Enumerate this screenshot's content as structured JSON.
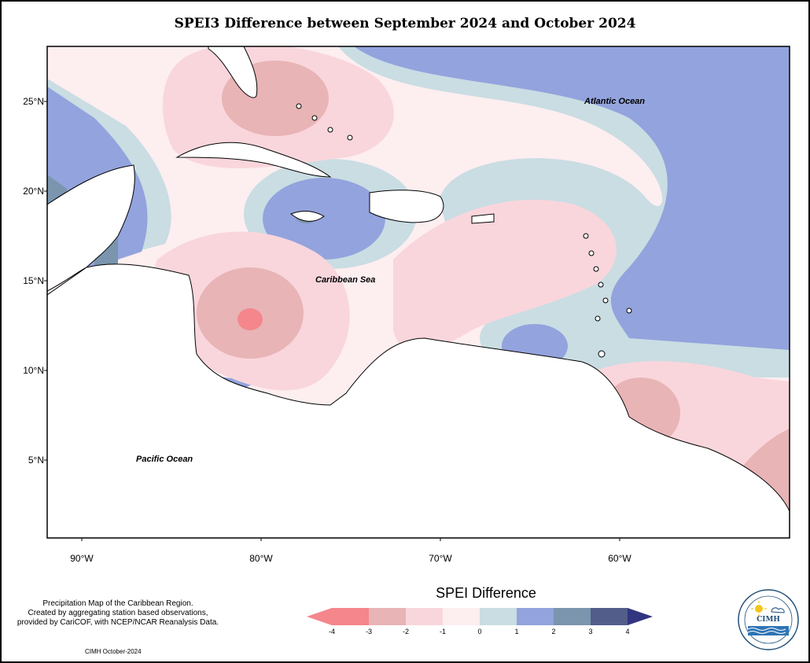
{
  "title": "SPEI3 Difference between September 2024 and October 2024",
  "map": {
    "lat_ticks": [
      "25°N",
      "20°N",
      "15°N",
      "10°N",
      "5°N"
    ],
    "lon_ticks": [
      "90°W",
      "80°W",
      "70°W",
      "60°W"
    ],
    "labels": {
      "atlantic": "Atlantic Ocean",
      "caribbean": "Caribbean Sea",
      "pacific": "Pacific Ocean"
    }
  },
  "legend": {
    "title": "SPEI Difference",
    "ticks": [
      "-4",
      "-3",
      "-2",
      "-1",
      "0",
      "1",
      "2",
      "3",
      "4"
    ],
    "colors": [
      "#f4868c",
      "#e8b4b6",
      "#f9d6dc",
      "#fdeef0",
      "#c9dde3",
      "#93a3dd",
      "#7b95ae",
      "#525d8a",
      "#32357f"
    ]
  },
  "footnote": [
    "Precipitation Map of the Caribbean Region.",
    "Created by aggregating station based observations,",
    "provided by CariCOF, with NCEP/NCAR Reanalysis Data."
  ],
  "credit": "CIMH October-2024",
  "logo": {
    "text": "CIMH",
    "icons": [
      "sun-icon",
      "cloud-icon",
      "water-waves-icon"
    ]
  }
}
